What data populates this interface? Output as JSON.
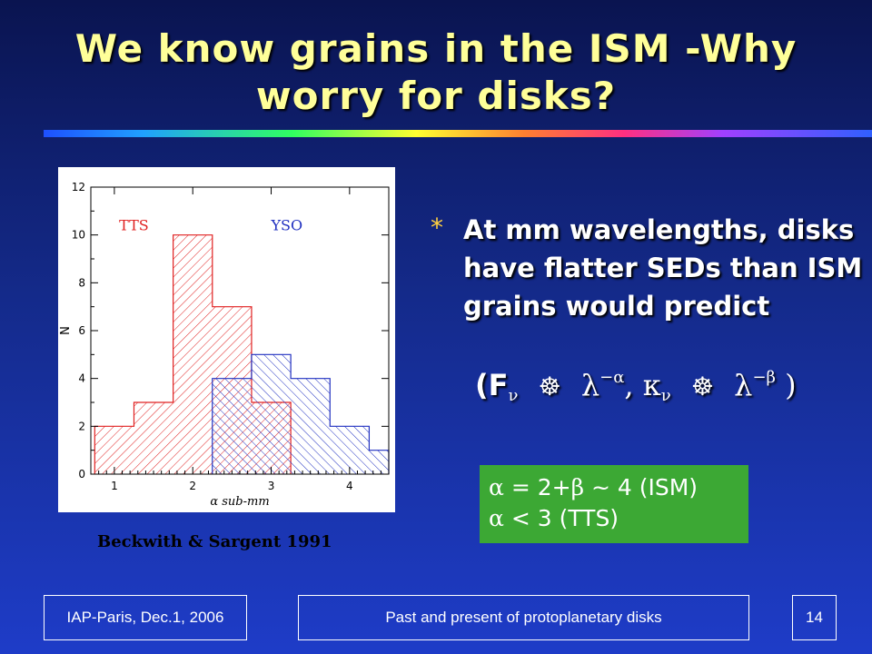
{
  "slide": {
    "title_line1": "We know grains in the ISM -Why",
    "title_line2": "worry for disks?",
    "caption": "Beckwith & Sargent 1991",
    "bullet_symbol": "*",
    "bullet_text": "At mm wavelengths, disks have flatter SEDs than ISM grains would predict",
    "formula": {
      "open": "(F",
      "nu": "ν",
      "prop_symbol": "☸",
      "lambda": "λ",
      "exp_alpha": "−α",
      "comma": ",",
      "kappa": "κ",
      "exp_beta": "−β",
      "close": ")"
    },
    "green_box": {
      "line1_greek": "α",
      "line1_rest": " = 2+",
      "line1_beta": "β",
      "line1_tail": " ~ 4  (ISM)",
      "line2_greek": "α",
      "line2_rest": " < 3  (TTS)"
    },
    "footer": {
      "left": "IAP-Paris, Dec.1, 2006",
      "center": "Past and present of protoplanetary disks",
      "right": "14"
    }
  },
  "chart_data": {
    "type": "bar",
    "subtype": "histogram",
    "xlabel": "α sub-mm",
    "ylabel": "N",
    "xlim": [
      0.7,
      4.5
    ],
    "ylim": [
      0,
      12
    ],
    "x_ticks": [
      1,
      2,
      3,
      4
    ],
    "y_ticks": [
      0,
      2,
      4,
      6,
      8,
      10,
      12
    ],
    "series": [
      {
        "name": "TTS",
        "color": "#e02020",
        "bins": [
          {
            "x0": 0.75,
            "x1": 1.25,
            "value": 2
          },
          {
            "x0": 1.25,
            "x1": 1.75,
            "value": 3
          },
          {
            "x0": 1.75,
            "x1": 2.25,
            "value": 10
          },
          {
            "x0": 2.25,
            "x1": 2.75,
            "value": 7
          },
          {
            "x0": 2.75,
            "x1": 3.25,
            "value": 3
          }
        ]
      },
      {
        "name": "YSO",
        "color": "#2030c0",
        "bins": [
          {
            "x0": 2.25,
            "x1": 2.75,
            "value": 4
          },
          {
            "x0": 2.75,
            "x1": 3.25,
            "value": 5
          },
          {
            "x0": 3.25,
            "x1": 3.75,
            "value": 4
          },
          {
            "x0": 3.75,
            "x1": 4.25,
            "value": 2
          },
          {
            "x0": 4.25,
            "x1": 4.5,
            "value": 1
          }
        ]
      }
    ]
  }
}
